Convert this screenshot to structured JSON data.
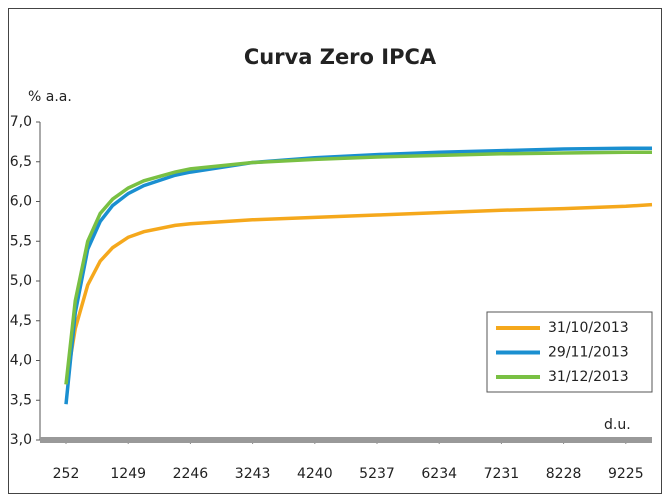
{
  "chart_data": {
    "type": "line",
    "title": "Curva Zero IPCA",
    "y_label": "% a.a.",
    "x_label": "d.u.",
    "x": [
      252,
      400,
      600,
      800,
      1000,
      1249,
      1500,
      2000,
      2246,
      3243,
      4240,
      5237,
      6234,
      7231,
      8228,
      9225,
      9645
    ],
    "series": [
      {
        "name": "31/10/2013",
        "color": "#f5a81c",
        "values": [
          3.7,
          4.4,
          4.95,
          5.25,
          5.42,
          5.55,
          5.62,
          5.7,
          5.72,
          5.77,
          5.8,
          5.83,
          5.86,
          5.89,
          5.91,
          5.94,
          5.96
        ]
      },
      {
        "name": "29/11/2013",
        "color": "#1a8fd0",
        "values": [
          3.45,
          4.6,
          5.4,
          5.75,
          5.95,
          6.1,
          6.2,
          6.33,
          6.37,
          6.49,
          6.55,
          6.59,
          6.62,
          6.64,
          6.66,
          6.67,
          6.67
        ]
      },
      {
        "name": "31/12/2013",
        "color": "#79c043",
        "values": [
          3.7,
          4.75,
          5.5,
          5.85,
          6.03,
          6.17,
          6.26,
          6.37,
          6.41,
          6.49,
          6.53,
          6.56,
          6.58,
          6.6,
          6.61,
          6.62,
          6.62
        ]
      }
    ],
    "xlim": [
      -165,
      9645
    ],
    "xticks": [
      252,
      1249,
      2246,
      3243,
      4240,
      5237,
      6234,
      7231,
      8228,
      9225
    ],
    "ylim": [
      3,
      7
    ],
    "yticks": [
      {
        "value": 3,
        "label": "3,0"
      },
      {
        "value": 3.5,
        "label": "3,5"
      },
      {
        "value": 4,
        "label": "4,0"
      },
      {
        "value": 4.5,
        "label": "4,5"
      },
      {
        "value": 5,
        "label": "5,0"
      },
      {
        "value": 5.5,
        "label": "5,5"
      },
      {
        "value": 6,
        "label": "6,0"
      },
      {
        "value": 6.5,
        "label": "6,5"
      },
      {
        "value": 7,
        "label": "7,0"
      }
    ],
    "legend": "lower right",
    "grid": false
  }
}
